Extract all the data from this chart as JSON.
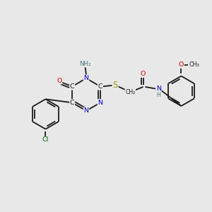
{
  "bg_color": "#e8e8e8",
  "bond_color": "#1a1a1a",
  "fig_size": [
    3.0,
    3.0
  ],
  "dpi": 100,
  "colors": {
    "N": "#0000cc",
    "O": "#cc0000",
    "S": "#999900",
    "Cl": "#006600",
    "C": "#1a1a1a",
    "H_label": "#4a7a7a"
  },
  "lw": 1.3,
  "fs": 6.8,
  "xlim": [
    0,
    10
  ],
  "ylim": [
    0,
    10
  ]
}
